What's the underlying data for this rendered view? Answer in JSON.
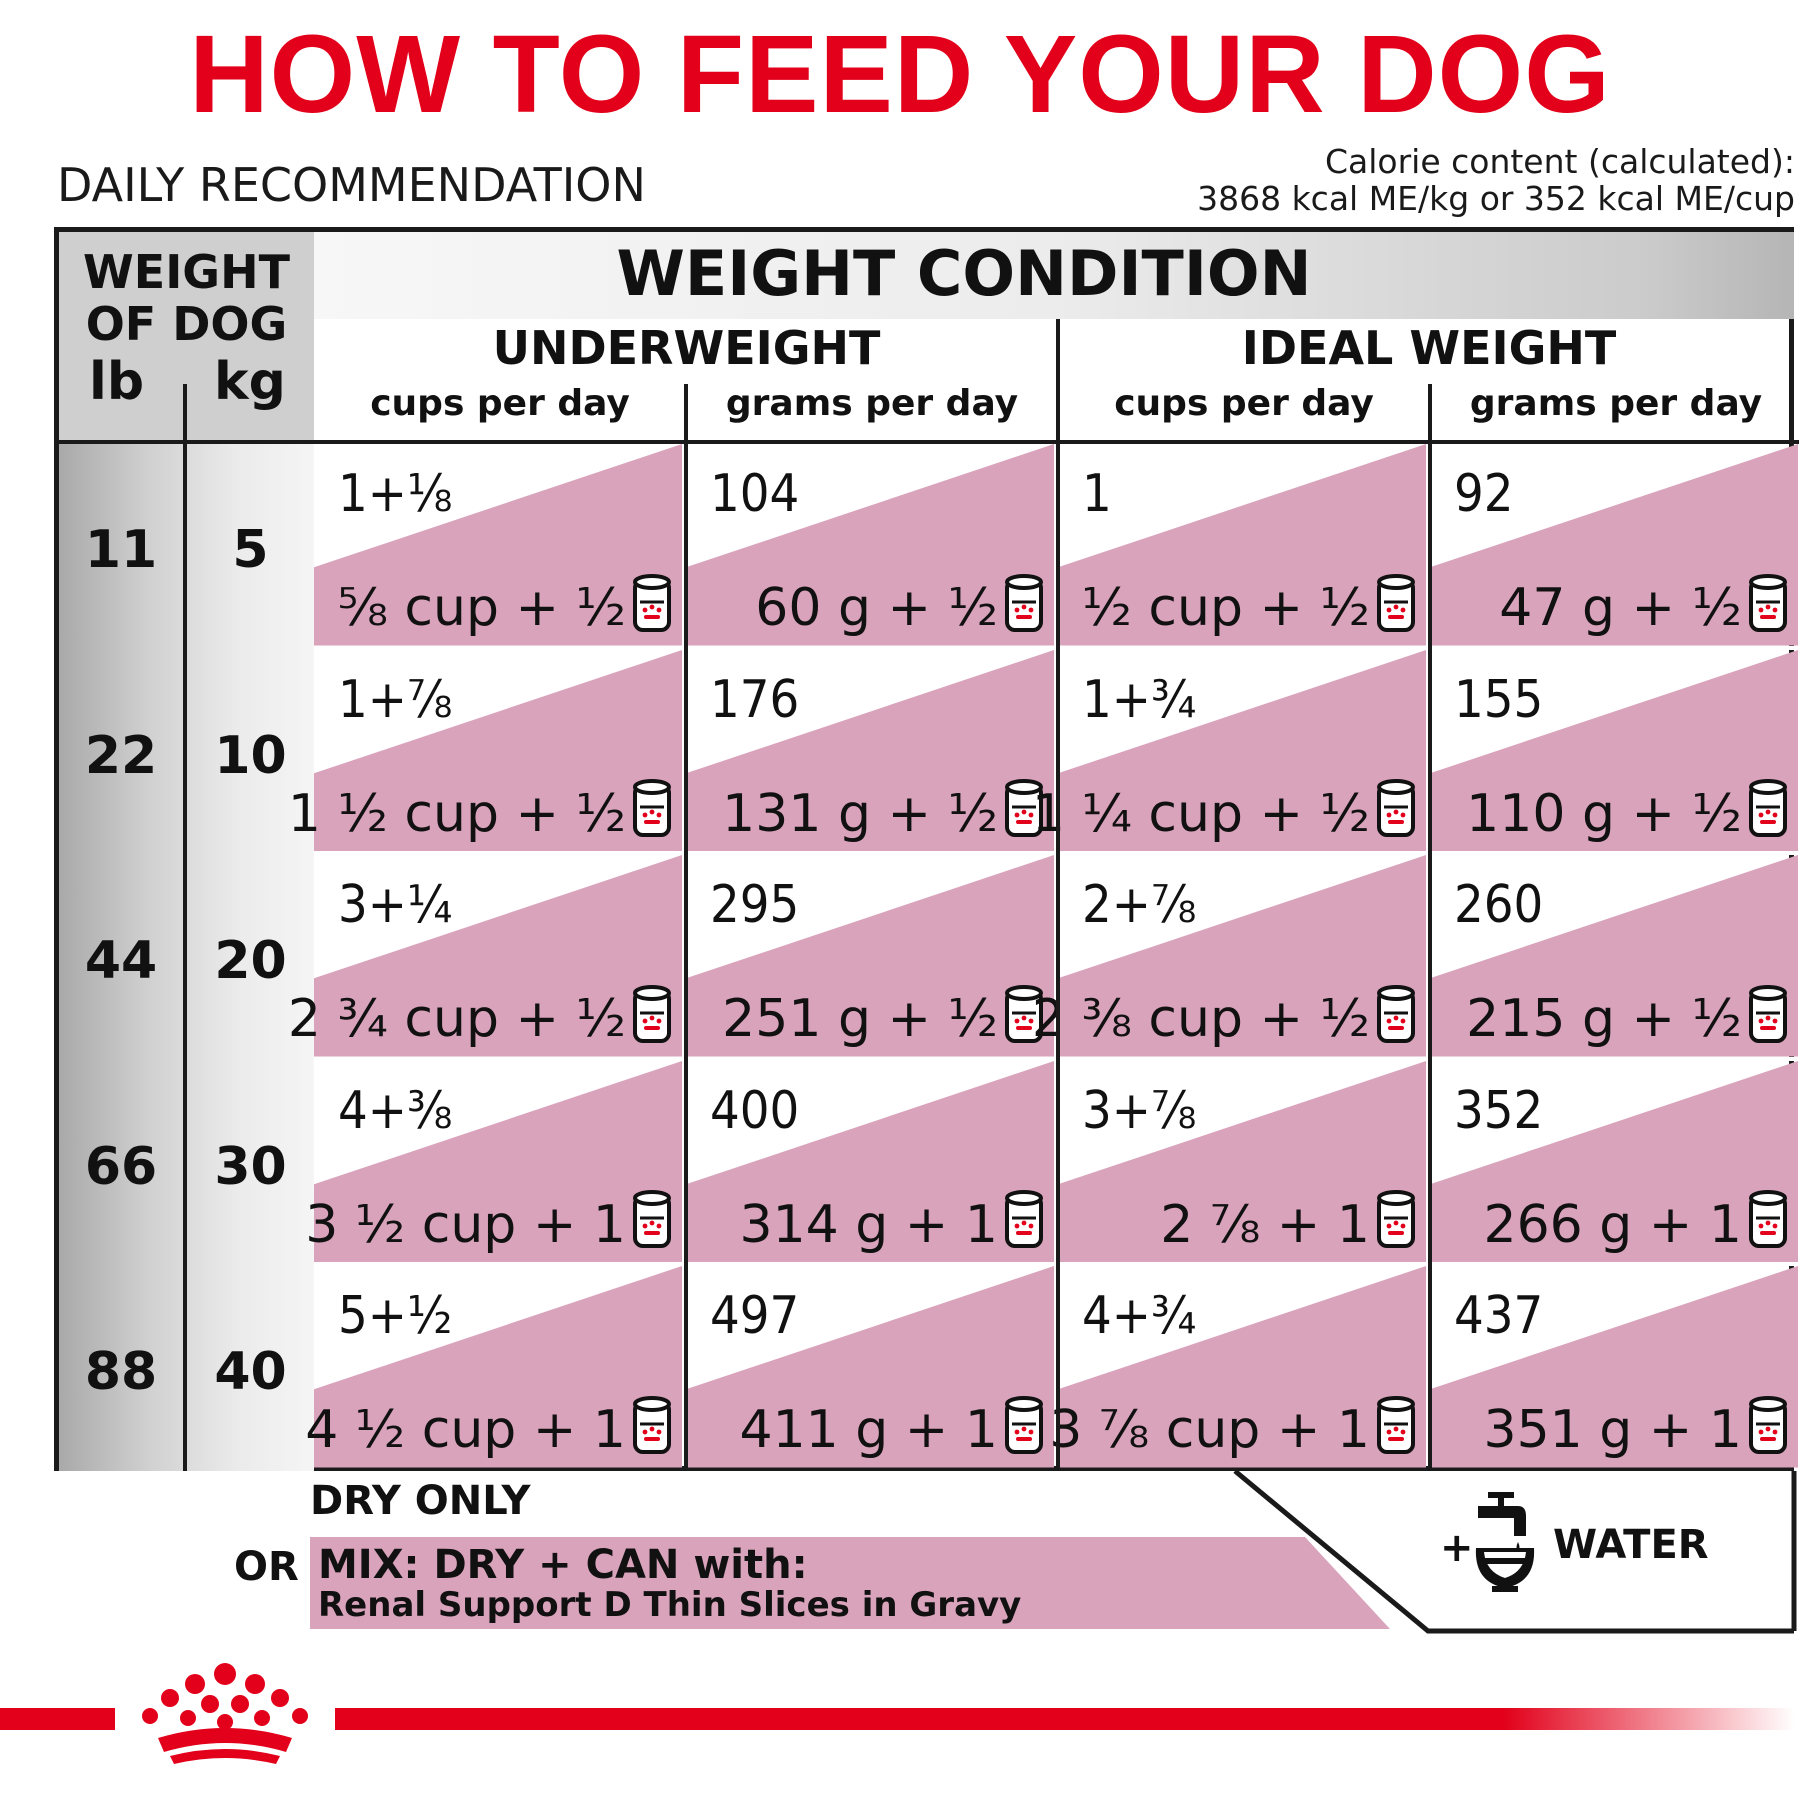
{
  "title": "HOW TO FEED YOUR DOG",
  "subtitle": "DAILY RECOMMENDATION",
  "calorie": {
    "line1": "Calorie content (calculated):",
    "line2": "3868 kcal ME/kg or 352 kcal ME/cup"
  },
  "header": {
    "weight_of_dog_line1": "WEIGHT",
    "weight_of_dog_line2": "OF DOG",
    "lb": "lb",
    "kg": "kg",
    "weight_condition": "WEIGHT CONDITION",
    "underweight": "UNDERWEIGHT",
    "ideal_weight": "IDEAL WEIGHT",
    "cups_per_day": "cups per day",
    "grams_per_day": "grams per day"
  },
  "rows": [
    {
      "lb": "11",
      "kg": "5",
      "cells": [
        {
          "dry": "1+⅛",
          "mix": "⅝ cup + ½"
        },
        {
          "dry": "104",
          "mix": "60 g + ½"
        },
        {
          "dry": "1",
          "mix": "½ cup + ½"
        },
        {
          "dry": "92",
          "mix": "47 g + ½"
        }
      ]
    },
    {
      "lb": "22",
      "kg": "10",
      "cells": [
        {
          "dry": "1+⅞",
          "mix": "1 ½ cup  + ½"
        },
        {
          "dry": "176",
          "mix": "131 g + ½"
        },
        {
          "dry": "1+¾",
          "mix": "1 ¼ cup + ½"
        },
        {
          "dry": "155",
          "mix": "110 g + ½"
        }
      ]
    },
    {
      "lb": "44",
      "kg": "20",
      "cells": [
        {
          "dry": "3+¼",
          "mix": "2 ¾ cup + ½"
        },
        {
          "dry": "295",
          "mix": "251 g + ½"
        },
        {
          "dry": "2+⅞",
          "mix": "2 ⅜ cup + ½"
        },
        {
          "dry": "260",
          "mix": "215 g + ½"
        }
      ]
    },
    {
      "lb": "66",
      "kg": "30",
      "cells": [
        {
          "dry": "4+⅜",
          "mix": "3 ½ cup + 1"
        },
        {
          "dry": "400",
          "mix": "314 g + 1"
        },
        {
          "dry": "3+⅞",
          "mix": "2 ⅞ + 1"
        },
        {
          "dry": "352",
          "mix": "266 g + 1"
        }
      ]
    },
    {
      "lb": "88",
      "kg": "40",
      "cells": [
        {
          "dry": "5+½",
          "mix": "4 ½ cup + 1"
        },
        {
          "dry": "497",
          "mix": "411 g + 1"
        },
        {
          "dry": "4+¾",
          "mix": "3 ⅞ cup + 1"
        },
        {
          "dry": "437",
          "mix": "351 g + 1"
        }
      ]
    }
  ],
  "legend": {
    "dry_only": "DRY ONLY",
    "or": "OR",
    "mix_line1": "MIX: DRY + CAN with:",
    "mix_line2": "Renal Support D Thin Slices in Gravy",
    "plus": "+",
    "water": "WATER"
  },
  "colors": {
    "brand_red": "#e2001a",
    "pink": "#d9a3bb"
  },
  "icons": [
    "can-icon",
    "water-tap-bowl-icon",
    "royal-canin-crown-logo"
  ]
}
